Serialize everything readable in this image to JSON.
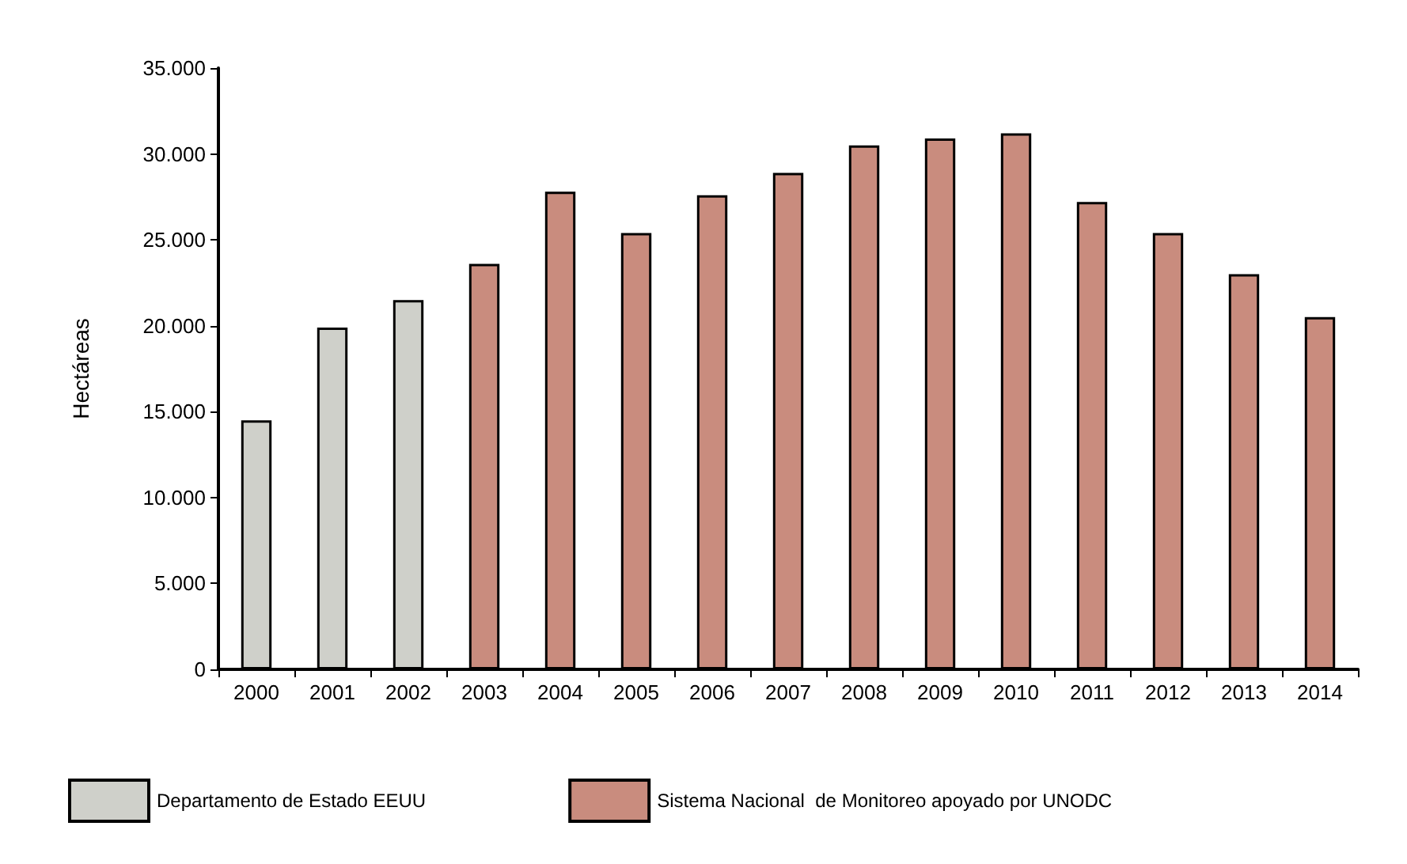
{
  "chart_data": {
    "type": "bar",
    "ylabel": "Hectáreas",
    "categories": [
      "2000",
      "2001",
      "2002",
      "2003",
      "2004",
      "2005",
      "2006",
      "2007",
      "2008",
      "2009",
      "2010",
      "2011",
      "2012",
      "2013",
      "2014"
    ],
    "series": [
      {
        "name": "Departamento de Estado EEUU",
        "color": "#cfd0ca",
        "values": [
          14500,
          19900,
          21500,
          null,
          null,
          null,
          null,
          null,
          null,
          null,
          null,
          null,
          null,
          null,
          null
        ]
      },
      {
        "name": "Sistema Nacional  de Monitoreo apoyado por UNODC",
        "color": "#c98c7e",
        "values": [
          null,
          null,
          null,
          23600,
          27800,
          25400,
          27600,
          28900,
          30500,
          30900,
          31200,
          27200,
          25400,
          23000,
          20500
        ]
      }
    ],
    "ylim": [
      0,
      35000
    ],
    "yticks": [
      {
        "value": 0,
        "label": "0"
      },
      {
        "value": 5000,
        "label": "5.000"
      },
      {
        "value": 10000,
        "label": "10.000"
      },
      {
        "value": 15000,
        "label": "15.000"
      },
      {
        "value": 20000,
        "label": "20.000"
      },
      {
        "value": 25000,
        "label": "25.000"
      },
      {
        "value": 30000,
        "label": "30.000"
      },
      {
        "value": 35000,
        "label": "35.000"
      }
    ],
    "grid": false,
    "legend": "bottom"
  }
}
